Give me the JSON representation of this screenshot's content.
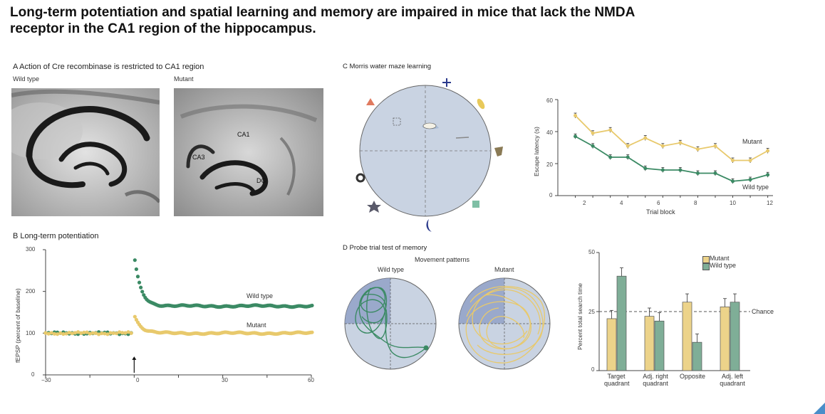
{
  "title": "Long-term potentiation and spatial learning and memory are impaired in mice that lack the NMDA receptor in the CA1 region of the hippocampus.",
  "panel_a": {
    "heading": "A  Action of Cre recombinase is restricted to CA1 region",
    "wild_label": "Wild type",
    "mutant_label": "Mutant",
    "region_labels": [
      "CA1",
      "CA3",
      "DG"
    ]
  },
  "panel_b": {
    "heading": "B  Long-term potentiation",
    "y_label": "fEPSP (percent of baseline)",
    "y_ticks": [
      "300",
      "200",
      "100",
      "0"
    ],
    "x_ticks": [
      "−30",
      "0",
      "30",
      "60"
    ],
    "wild_label": "Wild type",
    "mutant_label": "Mutant"
  },
  "panel_c": {
    "heading": "C  Morris water maze learning",
    "y_label": "Escape latency (s)",
    "x_label": "Trial block",
    "y_ticks": [
      "60",
      "40",
      "20",
      "0"
    ],
    "x_ticks": [
      "2",
      "4",
      "6",
      "8",
      "10",
      "12"
    ],
    "mutant_label": "Mutant",
    "wild_label": "Wild type"
  },
  "panel_d": {
    "heading": "D  Probe trial test of memory",
    "sub_heading": "Movement patterns",
    "wild_label": "Wild type",
    "mutant_label": "Mutant",
    "y_label": "Percent total search time",
    "y_ticks": [
      "50",
      "25",
      "0"
    ],
    "chance_label": "Chance",
    "legend_mutant": "Mutant",
    "legend_wild": "Wild type",
    "categories": [
      {
        "line1": "Target",
        "line2": "quadrant"
      },
      {
        "line1": "Adj. right",
        "line2": "quadrant"
      },
      {
        "line1": "Opposite",
        "line2": ""
      },
      {
        "line1": "Adj. left",
        "line2": "quadrant"
      }
    ]
  },
  "colors": {
    "mutant": "#e8c96c",
    "wild": "#3b8a64",
    "wild_bar": "#7fae97",
    "mutant_bar": "#ecd38a",
    "pool": "#c9d3e2"
  },
  "chart_data": [
    {
      "type": "scatter",
      "name": "Long-term potentiation",
      "xlim": [
        -30,
        60
      ],
      "ylim": [
        0,
        300
      ],
      "series": [
        {
          "name": "Wild type",
          "baseline": 100,
          "peak": 275,
          "plateau": 165
        },
        {
          "name": "Mutant",
          "baseline": 100,
          "peak": 140,
          "plateau": 100
        }
      ]
    },
    {
      "type": "line",
      "name": "Morris water maze learning",
      "x": [
        1,
        2,
        3,
        4,
        5,
        6,
        7,
        8,
        9,
        10,
        11,
        12
      ],
      "ylim": [
        0,
        60
      ],
      "series": [
        {
          "name": "Mutant",
          "values": [
            50,
            39,
            41,
            31,
            36,
            31,
            33,
            29,
            31,
            22,
            22,
            28
          ]
        },
        {
          "name": "Wild type",
          "values": [
            37,
            31,
            24,
            24,
            17,
            16,
            16,
            14,
            14,
            9,
            10,
            13
          ]
        }
      ]
    },
    {
      "type": "bar",
      "name": "Probe trial",
      "categories": [
        "Target quadrant",
        "Adj. right quadrant",
        "Opposite",
        "Adj. left quadrant"
      ],
      "ylim": [
        0,
        50
      ],
      "chance": 25,
      "series": [
        {
          "name": "Mutant",
          "values": [
            22,
            23,
            29,
            27
          ]
        },
        {
          "name": "Wild type",
          "values": [
            40,
            21,
            12,
            29
          ]
        }
      ]
    }
  ]
}
